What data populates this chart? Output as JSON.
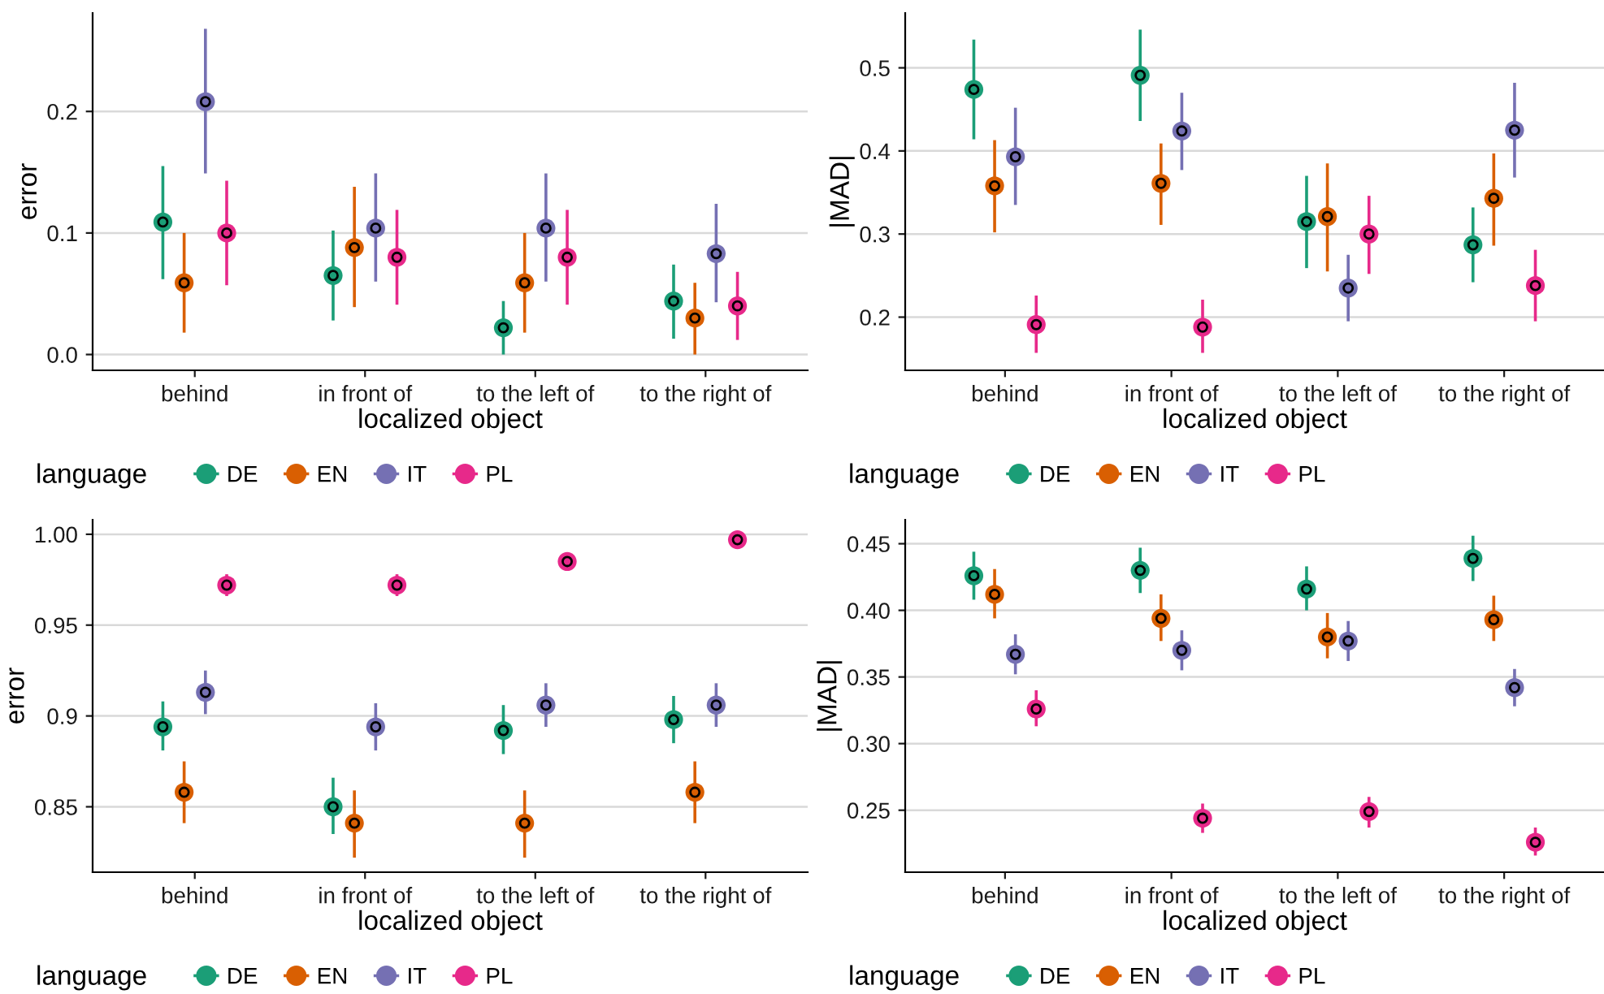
{
  "chart_data": [
    {
      "type": "scatter",
      "xlabel": "localized object",
      "ylabel": "error",
      "legend_title": "language",
      "legend": "bottom",
      "grid": "y",
      "marker": "circle",
      "categories": [
        "behind",
        "in front of",
        "to the left of",
        "to the right of"
      ],
      "ylim": [
        -0.013,
        0.281
      ],
      "yticks": [
        {
          "value": 0.0,
          "label": "0.0"
        },
        0.1,
        0.2
      ],
      "series": [
        {
          "name": "DE",
          "color": "#1b9e77",
          "values": [
            0.109,
            0.065,
            0.022,
            0.044
          ],
          "errors": [
            [
              0.062,
              0.155
            ],
            [
              0.028,
              0.102
            ],
            [
              0.0,
              0.044
            ],
            [
              0.013,
              0.074
            ]
          ]
        },
        {
          "name": "EN",
          "color": "#d95f02",
          "values": [
            0.059,
            0.088,
            0.059,
            0.03
          ],
          "errors": [
            [
              0.018,
              0.1
            ],
            [
              0.039,
              0.138
            ],
            [
              0.018,
              0.1
            ],
            [
              0.0,
              0.059
            ]
          ]
        },
        {
          "name": "IT",
          "color": "#7570b3",
          "values": [
            0.208,
            0.104,
            0.104,
            0.083
          ],
          "errors": [
            [
              0.149,
              0.268
            ],
            [
              0.06,
              0.149
            ],
            [
              0.06,
              0.149
            ],
            [
              0.043,
              0.124
            ]
          ]
        },
        {
          "name": "PL",
          "color": "#e7298a",
          "values": [
            0.1,
            0.08,
            0.08,
            0.04
          ],
          "errors": [
            [
              0.057,
              0.143
            ],
            [
              0.041,
              0.119
            ],
            [
              0.041,
              0.119
            ],
            [
              0.012,
              0.068
            ]
          ]
        }
      ]
    },
    {
      "type": "scatter",
      "xlabel": "localized object",
      "ylabel": "|MAD|",
      "legend_title": "language",
      "legend": "bottom",
      "grid": "y",
      "marker": "circle",
      "categories": [
        "behind",
        "in front of",
        "to the left of",
        "to the right of"
      ],
      "ylim": [
        0.136,
        0.566
      ],
      "yticks": [
        0.2,
        0.3,
        0.4,
        0.5
      ],
      "series": [
        {
          "name": "DE",
          "color": "#1b9e77",
          "values": [
            0.474,
            0.491,
            0.315,
            0.287
          ],
          "errors": [
            [
              0.414,
              0.534
            ],
            [
              0.436,
              0.546
            ],
            [
              0.259,
              0.37
            ],
            [
              0.242,
              0.332
            ]
          ]
        },
        {
          "name": "EN",
          "color": "#d95f02",
          "values": [
            0.358,
            0.361,
            0.321,
            0.343
          ],
          "errors": [
            [
              0.302,
              0.413
            ],
            [
              0.311,
              0.409
            ],
            [
              0.255,
              0.385
            ],
            [
              0.286,
              0.397
            ]
          ]
        },
        {
          "name": "IT",
          "color": "#7570b3",
          "values": [
            0.393,
            0.424,
            0.235,
            0.425
          ],
          "errors": [
            [
              0.335,
              0.452
            ],
            [
              0.377,
              0.47
            ],
            [
              0.195,
              0.275
            ],
            [
              0.368,
              0.482
            ]
          ]
        },
        {
          "name": "PL",
          "color": "#e7298a",
          "values": [
            0.191,
            0.188,
            0.3,
            0.238
          ],
          "errors": [
            [
              0.157,
              0.226
            ],
            [
              0.157,
              0.221
            ],
            [
              0.252,
              0.346
            ],
            [
              0.195,
              0.281
            ]
          ]
        }
      ]
    },
    {
      "type": "scatter",
      "xlabel": "localized object",
      "ylabel": "error",
      "legend_title": "language",
      "legend": "bottom",
      "grid": "y",
      "marker": "circle",
      "categories": [
        "behind",
        "in front of",
        "to the left of",
        "to the right of"
      ],
      "ylim": [
        0.814,
        1.008
      ],
      "yticks": [
        0.85,
        0.9,
        0.95,
        {
          "value": 1.0,
          "label": "1.00"
        }
      ],
      "series": [
        {
          "name": "DE",
          "color": "#1b9e77",
          "values": [
            0.894,
            0.85,
            0.892,
            0.898
          ],
          "errors": [
            [
              0.881,
              0.908
            ],
            [
              0.835,
              0.866
            ],
            [
              0.879,
              0.906
            ],
            [
              0.885,
              0.911
            ]
          ]
        },
        {
          "name": "EN",
          "color": "#d95f02",
          "values": [
            0.858,
            0.841,
            0.841,
            0.858
          ],
          "errors": [
            [
              0.841,
              0.875
            ],
            [
              0.822,
              0.859
            ],
            [
              0.822,
              0.859
            ],
            [
              0.841,
              0.875
            ]
          ]
        },
        {
          "name": "IT",
          "color": "#7570b3",
          "values": [
            0.913,
            0.894,
            0.906,
            0.906
          ],
          "errors": [
            [
              0.901,
              0.925
            ],
            [
              0.881,
              0.907
            ],
            [
              0.894,
              0.918
            ],
            [
              0.894,
              0.918
            ]
          ]
        },
        {
          "name": "PL",
          "color": "#e7298a",
          "values": [
            0.972,
            0.972,
            0.985,
            0.997
          ],
          "errors": [
            [
              0.966,
              0.978
            ],
            [
              0.966,
              0.978
            ],
            [
              0.982,
              0.988
            ],
            [
              0.996,
              0.998
            ]
          ]
        }
      ]
    },
    {
      "type": "scatter",
      "xlabel": "localized object",
      "ylabel": "|MAD|",
      "legend_title": "language",
      "legend": "bottom",
      "grid": "y",
      "marker": "circle",
      "categories": [
        "behind",
        "in front of",
        "to the left of",
        "to the right of"
      ],
      "ylim": [
        0.2035,
        0.468
      ],
      "yticks": [
        0.25,
        {
          "value": 0.3,
          "label": "0.30"
        },
        0.35,
        {
          "value": 0.4,
          "label": "0.40"
        },
        0.45
      ],
      "series": [
        {
          "name": "DE",
          "color": "#1b9e77",
          "values": [
            0.426,
            0.43,
            0.416,
            0.439
          ],
          "errors": [
            [
              0.408,
              0.444
            ],
            [
              0.413,
              0.447
            ],
            [
              0.4,
              0.433
            ],
            [
              0.422,
              0.456
            ]
          ]
        },
        {
          "name": "EN",
          "color": "#d95f02",
          "values": [
            0.412,
            0.394,
            0.38,
            0.393
          ],
          "errors": [
            [
              0.394,
              0.431
            ],
            [
              0.377,
              0.412
            ],
            [
              0.364,
              0.398
            ],
            [
              0.377,
              0.411
            ]
          ]
        },
        {
          "name": "IT",
          "color": "#7570b3",
          "values": [
            0.367,
            0.37,
            0.377,
            0.342
          ],
          "errors": [
            [
              0.352,
              0.382
            ],
            [
              0.355,
              0.385
            ],
            [
              0.362,
              0.392
            ],
            [
              0.328,
              0.356
            ]
          ]
        },
        {
          "name": "PL",
          "color": "#e7298a",
          "values": [
            0.326,
            0.244,
            0.249,
            0.226
          ],
          "errors": [
            [
              0.313,
              0.34
            ],
            [
              0.233,
              0.255
            ],
            [
              0.237,
              0.26
            ],
            [
              0.216,
              0.237
            ]
          ]
        }
      ]
    }
  ]
}
